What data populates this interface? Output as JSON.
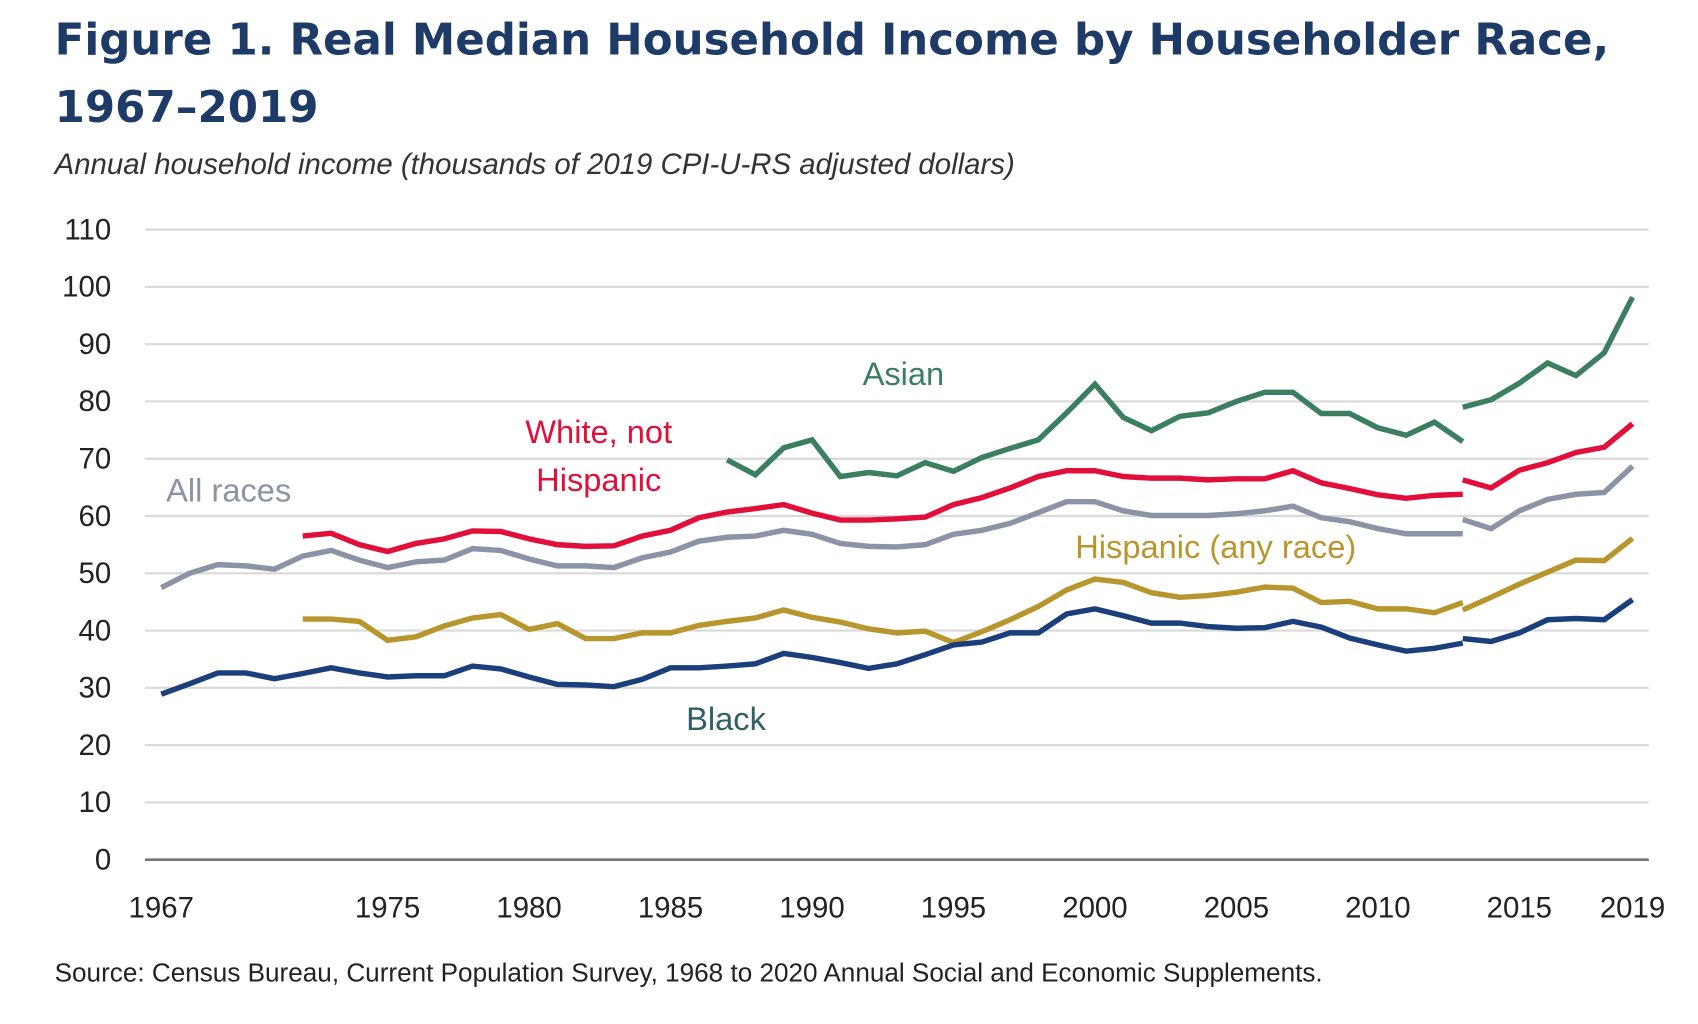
{
  "chart_data": {
    "type": "line",
    "title": "Figure 1. Real Median Household Income by Householder Race, 1967–2019",
    "title_lines": [
      "Figure 1. Real Median Household Income by Householder Race,",
      "1967–2019"
    ],
    "subtitle": "Annual household income (thousands of 2019 CPI-U-RS adjusted dollars)",
    "source": "Source: Census Bureau, Current Population Survey, 1968 to 2020 Annual Social and Economic Supplements.",
    "xlabel": "",
    "ylabel": "",
    "xlim": [
      1967,
      2019
    ],
    "ylim": [
      0,
      110
    ],
    "grid": true,
    "legend": "inline labels",
    "y_ticks": [
      "0",
      "10",
      "20",
      "30",
      "40",
      "50",
      "60",
      "70",
      "80",
      "90",
      "100",
      "110"
    ],
    "x_ticks": [
      "1967",
      "1975",
      "1980",
      "1985",
      "1990",
      "1995",
      "2000",
      "2005",
      "2010",
      "2015",
      "2019"
    ],
    "series": [
      {
        "name": "All races",
        "color": "#8a94a6",
        "segments": [
          {
            "start": 1967,
            "values": [
              47.5,
              50,
              51.5,
              51.3,
              50.7,
              53,
              54,
              52.3,
              51,
              52,
              52.3,
              54.3,
              54,
              52.5,
              51.3,
              51.3,
              51,
              52.7,
              53.7,
              55.6,
              56.3,
              56.5,
              57.5,
              56.8,
              55.2,
              54.7,
              54.6,
              55,
              56.8,
              57.5,
              58.7,
              60.6,
              62.5,
              62.5,
              60.9,
              60.1,
              60.1,
              60.1,
              60.4,
              60.9,
              61.7,
              59.7,
              59,
              57.8,
              56.9,
              56.9,
              56.9
            ]
          },
          {
            "start": 2013,
            "values": [
              59.4,
              57.8,
              60.9,
              62.9,
              63.8,
              64.1,
              68.7
            ]
          }
        ]
      },
      {
        "name": "White, not Hispanic",
        "color": "#e0103a",
        "segments": [
          {
            "start": 1972,
            "values": [
              56.5,
              57,
              55,
              53.8,
              55.2,
              56,
              57.4,
              57.3,
              56,
              55,
              54.7,
              54.8,
              56.5,
              57.5,
              59.7,
              60.7,
              61.3,
              62,
              60.5,
              59.3,
              59.3,
              59.5,
              59.8,
              62,
              63.2,
              64.9,
              66.9,
              67.9,
              67.9,
              66.9,
              66.6,
              66.6,
              66.3,
              66.5,
              66.5,
              67.9,
              65.8,
              64.8,
              63.7,
              63.1,
              63.6,
              63.8
            ]
          },
          {
            "start": 2013,
            "values": [
              66.3,
              64.9,
              68.0,
              69.3,
              71.1,
              72.0,
              76.1
            ]
          }
        ]
      },
      {
        "name": "Asian",
        "color": "#3b7f60",
        "segments": [
          {
            "start": 1987,
            "values": [
              69.8,
              67.2,
              71.9,
              73.3,
              66.9,
              67.6,
              67,
              69.3,
              67.8,
              70.2,
              71.8,
              73.3,
              78,
              83,
              77.2,
              74.9,
              77.4,
              78,
              80,
              81.6,
              81.6,
              77.9,
              77.9,
              75.4,
              74.1,
              76.4,
              73
            ]
          },
          {
            "start": 2013,
            "values": [
              79,
              80.3,
              83.2,
              86.7,
              84.5,
              88.5,
              98.2
            ]
          }
        ]
      },
      {
        "name": "Hispanic (any race)",
        "color": "#b8962e",
        "segments": [
          {
            "start": 1972,
            "values": [
              42,
              42,
              41.6,
              38.3,
              38.9,
              40.8,
              42.2,
              42.8,
              40.2,
              41.2,
              38.6,
              38.6,
              39.6,
              39.6,
              40.9,
              41.6,
              42.2,
              43.6,
              42.3,
              41.5,
              40.3,
              39.6,
              39.9,
              37.9,
              39.8,
              41.9,
              44.2,
              47.1,
              49,
              48.4,
              46.6,
              45.8,
              46.1,
              46.7,
              47.6,
              47.4,
              44.9,
              45.1,
              43.8,
              43.8,
              43.1,
              44.9
            ]
          },
          {
            "start": 2013,
            "values": [
              43.6,
              45.8,
              48.1,
              50.2,
              52.3,
              52.2,
              56.1
            ]
          }
        ]
      },
      {
        "name": "Black",
        "color": "#1b3f7a",
        "segments": [
          {
            "start": 1967,
            "values": [
              28.9,
              30.7,
              32.6,
              32.6,
              31.6,
              32.5,
              33.5,
              32.6,
              31.9,
              32.1,
              32.1,
              33.8,
              33.3,
              31.9,
              30.6,
              30.5,
              30.2,
              31.5,
              33.5,
              33.5,
              33.8,
              34.2,
              36,
              35.3,
              34.4,
              33.4,
              34.2,
              35.8,
              37.5,
              38,
              39.6,
              39.6,
              42.9,
              43.8,
              42.6,
              41.3,
              41.3,
              40.7,
              40.4,
              40.5,
              41.6,
              40.6,
              38.7,
              37.5,
              36.4,
              36.9,
              37.8
            ]
          },
          {
            "start": 2013,
            "values": [
              38.6,
              38.1,
              39.6,
              41.9,
              42.1,
              41.9,
              45.4
            ]
          }
        ]
      }
    ],
    "series_labels": [
      {
        "lines": [
          "All races"
        ],
        "color": "#8a94a6"
      },
      {
        "lines": [
          "White, not",
          "Hispanic"
        ],
        "color": "#e0103a"
      },
      {
        "lines": [
          "Asian"
        ],
        "color": "#3b7f60"
      },
      {
        "lines": [
          "Hispanic (any race)"
        ],
        "color": "#b8962e"
      },
      {
        "lines": [
          "Black"
        ],
        "color": "#2f5f66"
      }
    ]
  }
}
